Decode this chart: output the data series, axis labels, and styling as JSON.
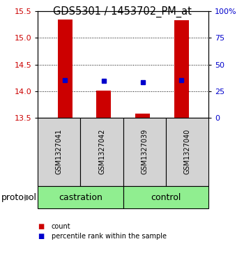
{
  "title": "GDS5301 / 1453702_PM_at",
  "samples": [
    "GSM1327041",
    "GSM1327042",
    "GSM1327039",
    "GSM1327040"
  ],
  "bar_bottoms": [
    13.5,
    13.5,
    13.5,
    13.5
  ],
  "bar_tops": [
    15.35,
    14.01,
    13.57,
    15.33
  ],
  "blue_dots": [
    14.2,
    14.19,
    14.17,
    14.2
  ],
  "ylim": [
    13.5,
    15.5
  ],
  "yticks_left": [
    13.5,
    14.0,
    14.5,
    15.0,
    15.5
  ],
  "yticks_right_labels": [
    "0",
    "25",
    "50",
    "75",
    "100%"
  ],
  "yticks_right_vals": [
    13.5,
    14.0,
    14.5,
    15.0,
    15.5
  ],
  "bar_color": "#cc0000",
  "dot_color": "#0000cc",
  "groups": [
    {
      "label": "castration",
      "n_samples": 2,
      "color": "#90ee90"
    },
    {
      "label": "control",
      "n_samples": 2,
      "color": "#90ee90"
    }
  ],
  "protocol_label": "protocol",
  "legend_items": [
    {
      "color": "#cc0000",
      "label": "count"
    },
    {
      "color": "#0000cc",
      "label": "percentile rank within the sample"
    }
  ],
  "left_axis_color": "#cc0000",
  "right_axis_color": "#0000cc",
  "background_label_box": "#d3d3d3",
  "background_group_box": "#90ee90"
}
